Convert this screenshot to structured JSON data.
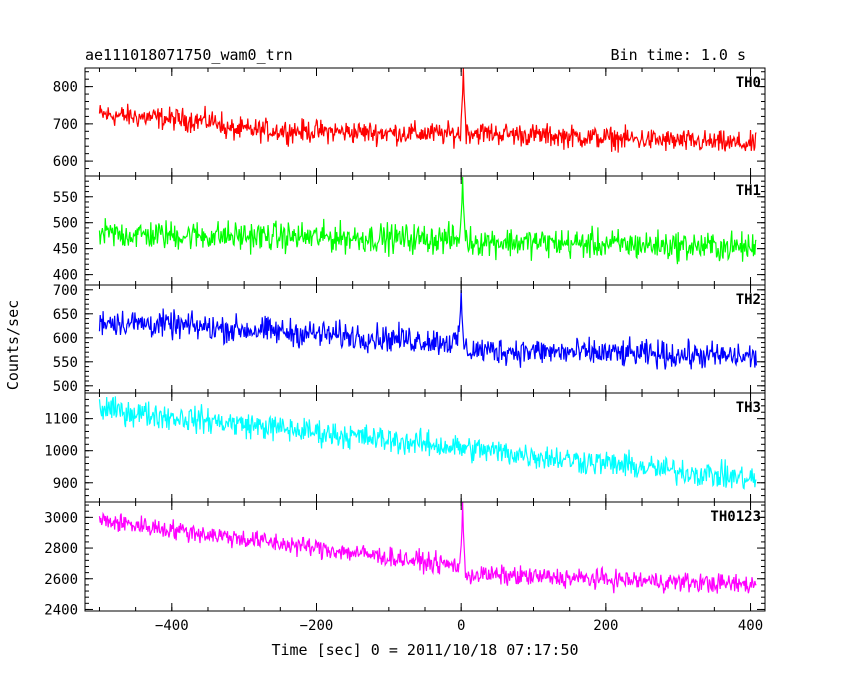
{
  "header": {
    "title": "ae111018071750_wam0_trn",
    "bin_time": "Bin time: 1.0 s"
  },
  "chart_data": {
    "type": "line",
    "xlabel": "Time [sec] 0 = 2011/10/18 07:17:50",
    "ylabel": "Counts/sec",
    "xlim": [
      -520,
      420
    ],
    "x_ticks": [
      -400,
      -200,
      0,
      200,
      400
    ],
    "x": {
      "start": -500,
      "end": 408,
      "step": 1
    },
    "panels": [
      {
        "name": "TH0",
        "color": "#ff0000",
        "ylim": [
          560,
          850
        ],
        "y_ticks": [
          600,
          700,
          800
        ],
        "series": [
          {
            "x_range": [
              -500,
              -330
            ],
            "y_trend": [
              725,
              705
            ]
          },
          {
            "x_range": [
              -330,
              0
            ],
            "y_trend": [
              685,
              672
            ]
          },
          {
            "x_range": [
              0,
              408
            ],
            "y_trend": [
              678,
              645
            ]
          }
        ],
        "noise_amplitude": 45,
        "peaks": [
          {
            "x": 3,
            "value": 850
          }
        ]
      },
      {
        "name": "TH1",
        "color": "#00ff00",
        "ylim": [
          380,
          590
        ],
        "y_ticks": [
          400,
          450,
          500,
          550
        ],
        "series": [
          {
            "x_range": [
              -500,
              0
            ],
            "y_trend": [
              478,
              468
            ]
          },
          {
            "x_range": [
              0,
              408
            ],
            "y_trend": [
              465,
              452
            ]
          }
        ],
        "noise_amplitude": 42,
        "peaks": [
          {
            "x": 2,
            "value": 588
          }
        ]
      },
      {
        "name": "TH2",
        "color": "#0000ff",
        "ylim": [
          485,
          710
        ],
        "y_ticks": [
          500,
          550,
          600,
          650,
          700
        ],
        "series": [
          {
            "x_range": [
              -500,
              0
            ],
            "y_trend": [
              635,
              590
            ]
          },
          {
            "x_range": [
              0,
              408
            ],
            "y_trend": [
              575,
              560
            ]
          }
        ],
        "noise_amplitude": 42,
        "peaks": [
          {
            "x": 0,
            "value": 700
          }
        ]
      },
      {
        "name": "TH3",
        "color": "#00ffff",
        "ylim": [
          840,
          1180
        ],
        "y_ticks": [
          900,
          1000,
          1100
        ],
        "series": [
          {
            "x_range": [
              -500,
              408
            ],
            "y_trend": [
              1130,
              910
            ]
          }
        ],
        "noise_amplitude": 60,
        "peaks": []
      },
      {
        "name": "TH0123",
        "color": "#ff00ff",
        "ylim": [
          2390,
          3100
        ],
        "y_ticks": [
          2400,
          2600,
          2800,
          3000
        ],
        "series": [
          {
            "x_range": [
              -500,
              0
            ],
            "y_trend": [
              2980,
              2680
            ]
          },
          {
            "x_range": [
              0,
              408
            ],
            "y_trend": [
              2630,
              2560
            ]
          }
        ],
        "noise_amplitude": 95,
        "peaks": [
          {
            "x": 2,
            "value": 3100
          }
        ]
      }
    ]
  }
}
